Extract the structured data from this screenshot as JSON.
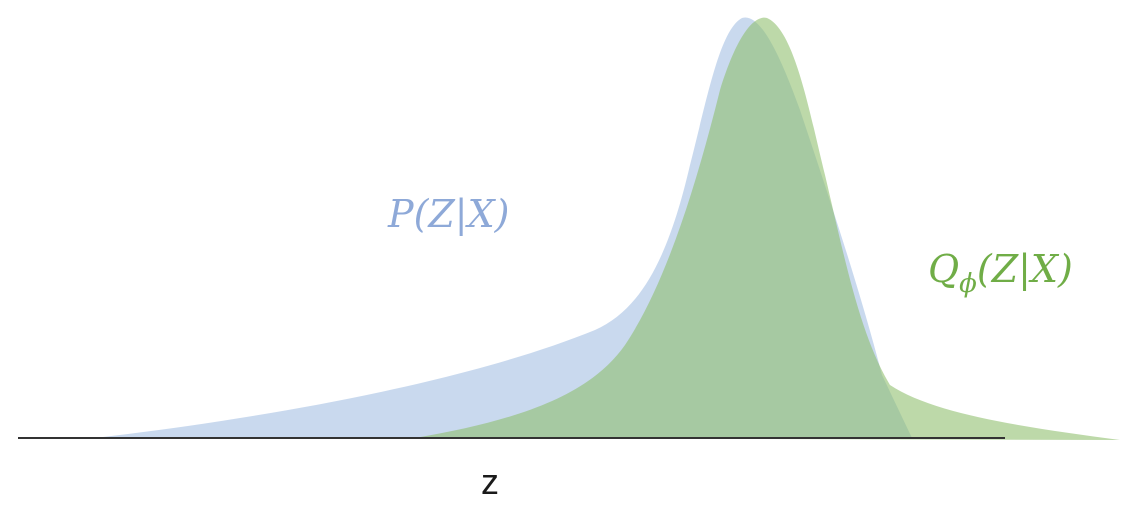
{
  "diagram": {
    "axis_label": "z",
    "curves": [
      {
        "id": "p",
        "label_main": "P(Z|X)",
        "color": "#AFC7E6",
        "opacity": 0.68
      },
      {
        "id": "q",
        "label_main": "Q",
        "label_sub": "ϕ",
        "label_rest": "(Z|X)",
        "label_color": "#70AD47",
        "color": "#8DBE6A",
        "opacity": 0.58
      }
    ],
    "axis_color": "#333333",
    "label_p_color": "#8EA9D8"
  }
}
